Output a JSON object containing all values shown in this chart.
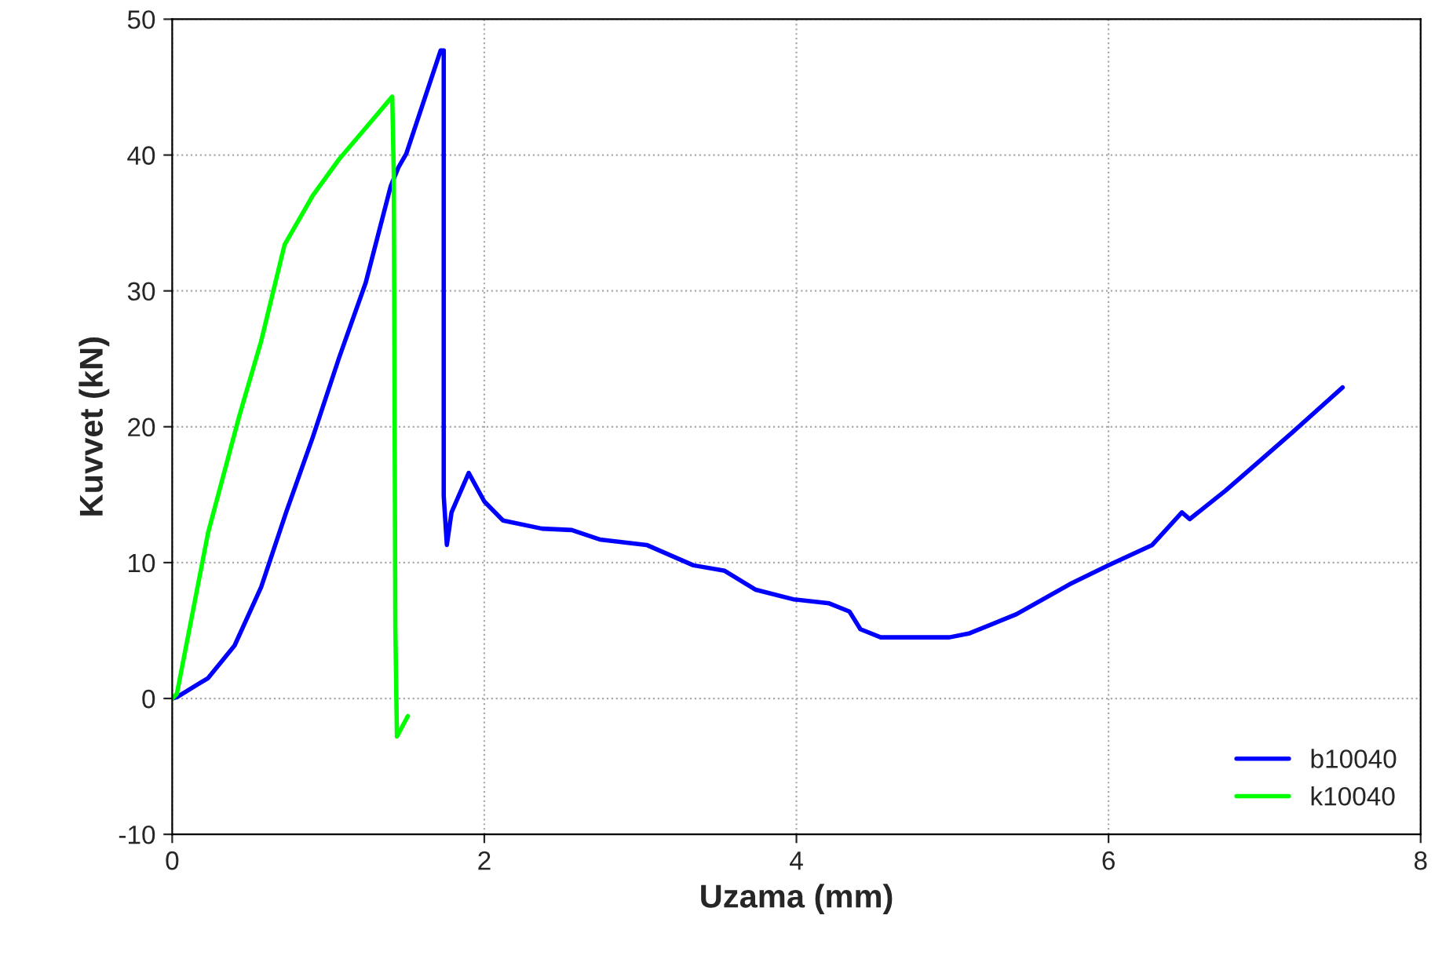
{
  "chart_data": {
    "type": "line",
    "xlabel": "Uzama (mm)",
    "ylabel": "Kuvvet (kN)",
    "xlim": [
      0,
      8
    ],
    "xticks": [
      0,
      2,
      4,
      6,
      8
    ],
    "ylim": [
      -10,
      50
    ],
    "yticks": [
      -10,
      0,
      10,
      20,
      30,
      40,
      50
    ],
    "grid": true,
    "legend": "bottom right",
    "line_style": "solid",
    "series": [
      {
        "name": "b10040",
        "color": "#0000ff",
        "x": [
          0,
          0.03,
          0.23,
          0.4,
          0.57,
          0.73,
          0.9,
          1.07,
          1.24,
          1.4,
          1.45,
          1.5,
          1.72,
          1.74,
          1.74,
          1.76,
          1.79,
          1.9,
          2.0,
          2.12,
          2.37,
          2.56,
          2.74,
          3.04,
          3.34,
          3.54,
          3.74,
          3.98,
          4.21,
          4.34,
          4.41,
          4.54,
          4.98,
          5.11,
          5.41,
          5.75,
          6.0,
          6.28,
          6.47,
          6.52,
          6.75,
          6.98,
          7.18,
          7.5
        ],
        "values": [
          0,
          0.1,
          1.5,
          3.9,
          8.2,
          13.7,
          19.2,
          25.1,
          30.6,
          37.7,
          39.1,
          40.1,
          47.7,
          47.7,
          14.9,
          11.3,
          13.7,
          16.6,
          14.5,
          13.1,
          12.5,
          12.4,
          11.7,
          11.3,
          9.8,
          9.4,
          8.0,
          7.3,
          7.0,
          6.4,
          5.1,
          4.5,
          4.5,
          4.8,
          6.2,
          8.4,
          9.8,
          11.3,
          13.7,
          13.2,
          15.3,
          17.6,
          19.6,
          22.9
        ]
      },
      {
        "name": "k10040",
        "color": "#00ff00",
        "x": [
          0,
          0.03,
          0.23,
          0.43,
          0.57,
          0.72,
          0.9,
          1.07,
          1.24,
          1.41,
          1.42,
          1.43,
          1.44,
          1.51
        ],
        "values": [
          0,
          0.35,
          12.2,
          20.8,
          26.3,
          33.4,
          37.0,
          39.7,
          42.0,
          44.3,
          38.5,
          5.2,
          -2.8,
          -1.3
        ]
      }
    ]
  }
}
